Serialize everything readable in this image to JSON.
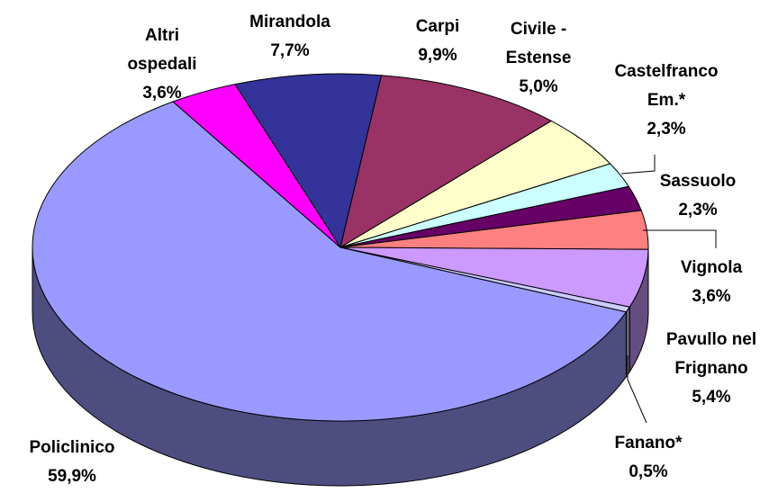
{
  "chart_data": {
    "type": "pie",
    "categories": [
      "Mirandola",
      "Carpi",
      "Civile - Estense",
      "Castelfranco Em.*",
      "Sassuolo",
      "Vignola",
      "Pavullo nel Frignano",
      "Fanano*",
      "Policlinico",
      "Altri ospedali"
    ],
    "values": [
      7.7,
      9.9,
      5.0,
      2.3,
      2.3,
      3.6,
      5.4,
      0.5,
      59.9,
      3.6
    ],
    "value_labels": [
      "7,7%",
      "9,9%",
      "5,0%",
      "2,3%",
      "2,3%",
      "3,6%",
      "5,4%",
      "0,5%",
      "59,9%",
      "3,6%"
    ],
    "colors": [
      "#333399",
      "#993366",
      "#ffffcc",
      "#ccffff",
      "#660066",
      "#ff8080",
      "#cc99ff",
      "#ccccff",
      "#9999ff",
      "#ff00ff"
    ]
  }
}
